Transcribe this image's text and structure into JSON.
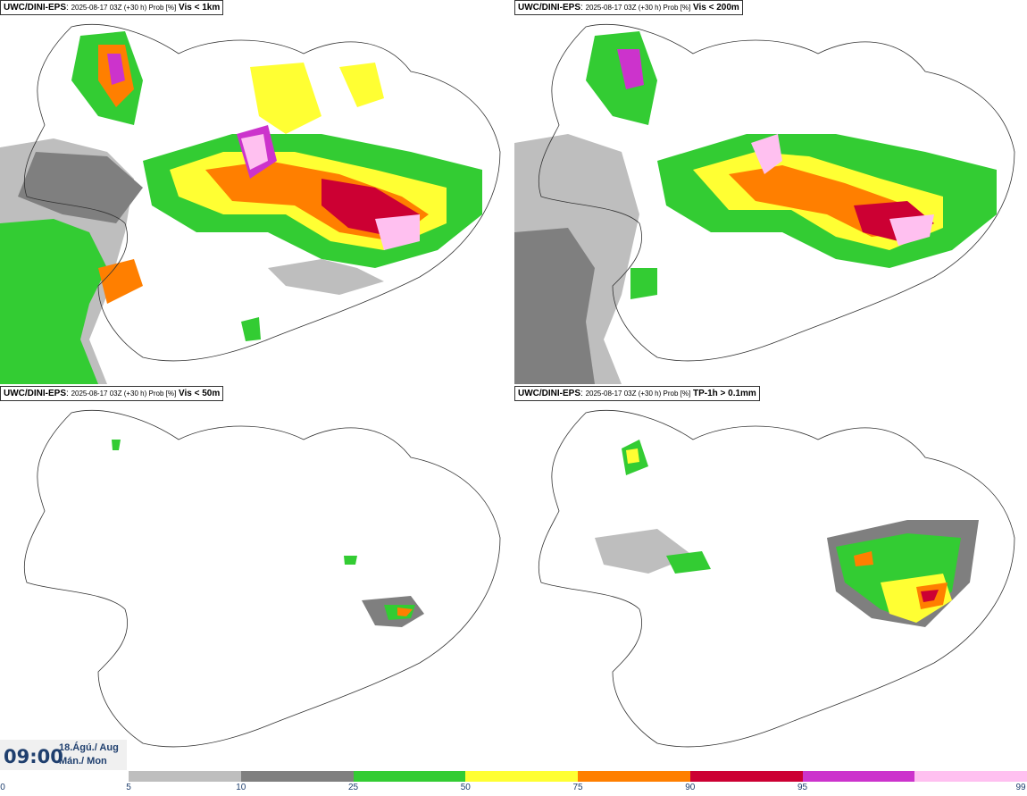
{
  "panels": [
    {
      "model": "UWC/DINI-EPS",
      "meta": "2025-08-17 03Z (+30 h) Prob [%]",
      "variable": "Vis < 1km"
    },
    {
      "model": "UWC/DINI-EPS",
      "meta": "2025-08-17 03Z (+30 h) Prob [%]",
      "variable": "Vis < 200m"
    },
    {
      "model": "UWC/DINI-EPS",
      "meta": "2025-08-17 03Z (+30 h) Prob [%]",
      "variable": "Vis < 50m"
    },
    {
      "model": "UWC/DINI-EPS",
      "meta": "2025-08-17 03Z (+30 h) Prob [%]",
      "variable": "TP-1h > 0.1mm"
    }
  ],
  "valid_time": {
    "time": "09:00",
    "date_line1": "18.Ágú./ Aug",
    "date_line2": "Mán./ Mon"
  },
  "colorbar": {
    "ticks": [
      "0",
      "5",
      "10",
      "25",
      "50",
      "75",
      "90",
      "95",
      "99"
    ],
    "colors": [
      "#bebebe",
      "#7f7f7f",
      "#33cc33",
      "#ffff33",
      "#ff7f00",
      "#cc0033",
      "#cc33cc",
      "#ffc0f0"
    ]
  }
}
